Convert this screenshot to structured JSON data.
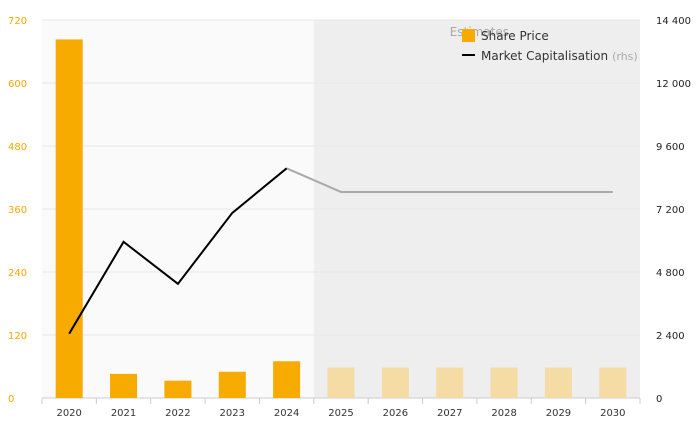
{
  "chart_data": {
    "type": "bar+line",
    "categories": [
      "2020",
      "2021",
      "2022",
      "2023",
      "2024",
      "2025",
      "2026",
      "2027",
      "2028",
      "2029",
      "2030"
    ],
    "estimate_start_index": 5,
    "estimates_label": "Estimates",
    "series": [
      {
        "name": "Share Price",
        "type": "bar",
        "axis": "left",
        "values": [
          683,
          46,
          33,
          50,
          70,
          58,
          58,
          58,
          58,
          58,
          58
        ]
      },
      {
        "name": "Market Capitalisation",
        "name_suffix": "(rhs)",
        "type": "line",
        "axis": "right",
        "values": [
          2450,
          5950,
          4350,
          7050,
          8750,
          7850,
          7850,
          7850,
          7850,
          7850,
          7850
        ]
      }
    ],
    "y_left": {
      "min": 0,
      "max": 720,
      "ticks": [
        "0",
        "120",
        "240",
        "360",
        "480",
        "600",
        "720"
      ]
    },
    "y_right": {
      "min": 0,
      "max": 14400,
      "ticks": [
        "0",
        "2 400",
        "4 800",
        "7 200",
        "9 600",
        "12 000",
        "14 400"
      ]
    },
    "grid": true,
    "legend_position": "top-right"
  },
  "colors": {
    "bar_actual": "#f7aa00",
    "bar_estimate": "#f4dca4",
    "line_actual": "#000000",
    "line_estimate": "#aaaaaa",
    "estimate_band": "#eeeeee",
    "left_axis_text": "#f5a800",
    "grid": "#e8e8e8"
  }
}
